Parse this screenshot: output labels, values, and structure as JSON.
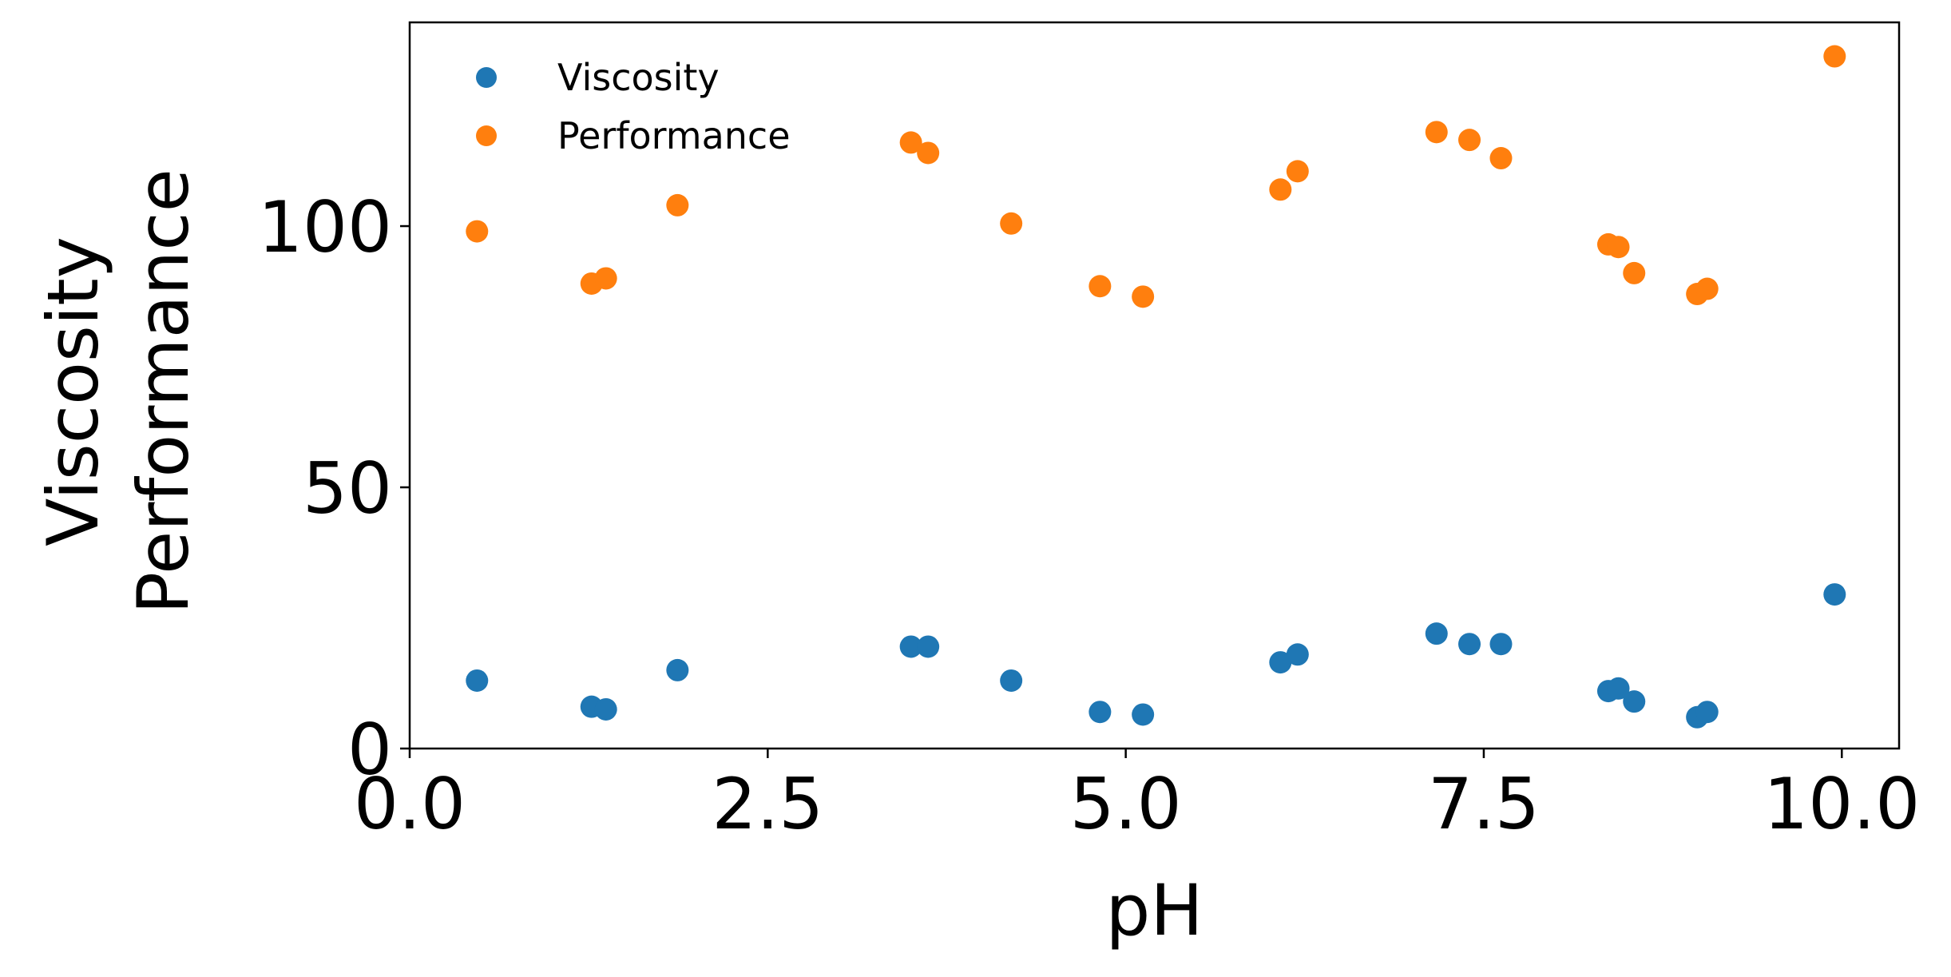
{
  "chart_data": {
    "type": "scatter",
    "xlabel": "pH",
    "ylabel_lines": [
      "Viscosity",
      "Performance"
    ],
    "xlim": [
      0,
      10.4
    ],
    "ylim": [
      0,
      139
    ],
    "xticks": [
      0.0,
      2.5,
      5.0,
      7.5,
      10.0
    ],
    "xtick_labels": [
      "0.0",
      "2.5",
      "5.0",
      "7.5",
      "10.0"
    ],
    "yticks": [
      0,
      50,
      100
    ],
    "ytick_labels": [
      "0",
      "50",
      "100"
    ],
    "grid": false,
    "legend_position": "top-left",
    "series": [
      {
        "name": "Viscosity",
        "color": "#1f77b4",
        "x": [
          0.47,
          1.27,
          1.37,
          1.87,
          3.5,
          3.62,
          4.2,
          4.82,
          5.12,
          6.08,
          6.2,
          7.17,
          7.4,
          7.62,
          8.37,
          8.44,
          8.55,
          8.99,
          9.06,
          9.95
        ],
        "y": [
          13,
          8,
          7.5,
          15,
          19.5,
          19.5,
          13,
          7,
          6.5,
          16.5,
          18,
          22,
          20,
          20,
          11,
          11.5,
          9,
          6,
          7,
          29.5
        ]
      },
      {
        "name": "Performance",
        "color": "#ff7f0e",
        "x": [
          0.47,
          1.27,
          1.37,
          1.87,
          3.5,
          3.62,
          4.2,
          4.82,
          5.12,
          6.08,
          6.2,
          7.17,
          7.4,
          7.62,
          8.37,
          8.44,
          8.55,
          8.99,
          9.06,
          9.95
        ],
        "y": [
          99,
          89,
          90,
          104,
          116,
          114,
          100.5,
          88.5,
          86.5,
          107,
          110.5,
          118,
          116.5,
          113,
          96.5,
          96,
          91,
          87,
          88,
          132.5
        ]
      }
    ]
  }
}
